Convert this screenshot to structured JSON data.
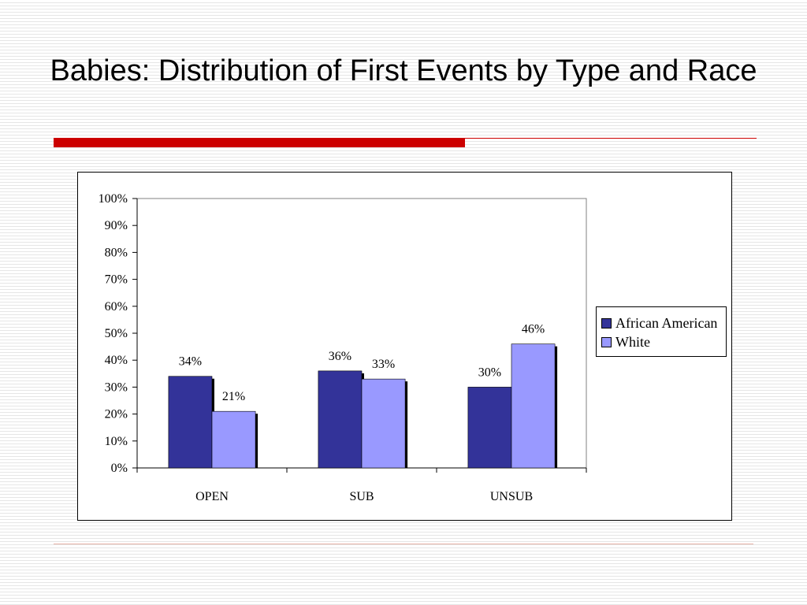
{
  "slide": {
    "title": "Babies: Distribution of First Events by Type and Race"
  },
  "chart_data": {
    "type": "bar",
    "title": "",
    "xlabel": "",
    "ylabel": "",
    "categories": [
      "OPEN",
      "SUB",
      "UNSUB"
    ],
    "ylim": [
      0,
      100
    ],
    "y_tick_step": 10,
    "y_tick_format": "percent",
    "y_ticks": [
      "0%",
      "10%",
      "20%",
      "30%",
      "40%",
      "50%",
      "60%",
      "70%",
      "80%",
      "90%",
      "100%"
    ],
    "grid": false,
    "legend_position": "right",
    "series": [
      {
        "name": "African American",
        "color": "#333399",
        "values": [
          34,
          36,
          30
        ],
        "labels": [
          "34%",
          "36%",
          "30%"
        ]
      },
      {
        "name": "White",
        "color": "#9999ff",
        "values": [
          21,
          33,
          46
        ],
        "labels": [
          "21%",
          "33%",
          "46%"
        ]
      }
    ]
  },
  "colors": {
    "title_rule": "#cc0000",
    "footer_rule": "#e8b4a8"
  }
}
